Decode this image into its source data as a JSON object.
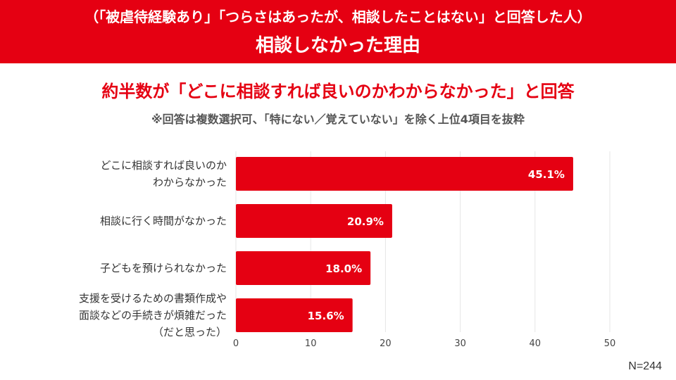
{
  "header": {
    "line1": "（「被虐待経験あり」「つらさはあったが、相談したことはない」と回答した人）",
    "line2": "相談しなかった理由"
  },
  "headline": "約半数が「どこに相談すれば良いのかわからなかった」と回答",
  "note": "※回答は複数選択可、「特にない／覚えていない」を除く上位4項目を抜粋",
  "sample_size": "N=244",
  "colors": {
    "accent": "#e50012",
    "bar": "#e50012",
    "grid": "#e6e6e6"
  },
  "chart_data": {
    "type": "bar",
    "orientation": "horizontal",
    "categories": [
      [
        "どこに相談すれば良いのか",
        "わからなかった"
      ],
      [
        "相談に行く時間がなかった"
      ],
      [
        "子どもを預けられなかった"
      ],
      [
        "支援を受けるための書類作成や",
        "面談などの手続きが煩雑だった",
        "（だと思った）"
      ]
    ],
    "values": [
      45.1,
      20.9,
      18.0,
      15.6
    ],
    "value_labels": [
      "45.1%",
      "20.9%",
      "18.0%",
      "15.6%"
    ],
    "xlim": [
      0,
      50
    ],
    "xticks": [
      0,
      10,
      20,
      30,
      40,
      50
    ],
    "grid": true,
    "legend": "none"
  }
}
